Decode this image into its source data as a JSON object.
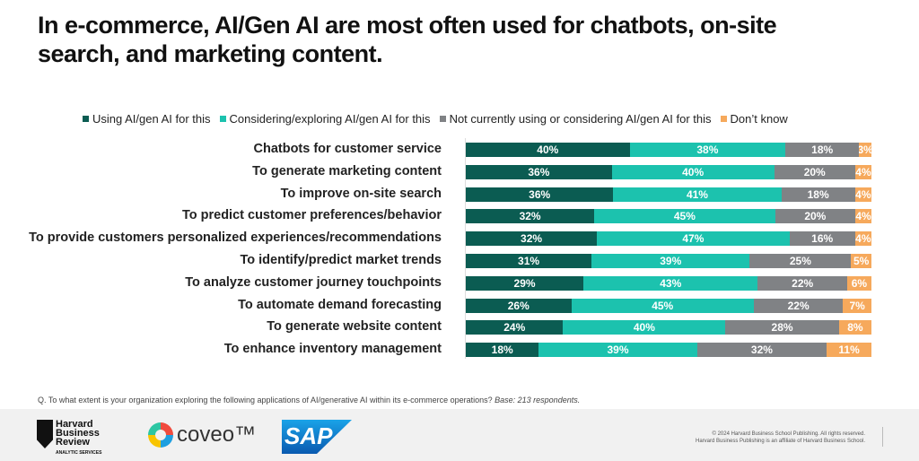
{
  "chart_data": {
    "type": "bar",
    "orientation": "horizontal-stacked-100",
    "title": "In e-commerce, AI/Gen AI are most often used for chatbots, on-site search, and marketing content.",
    "legend_position": "top",
    "categories": [
      "Chatbots for customer service",
      "To generate marketing content",
      "To improve on-site search",
      "To predict customer preferences/behavior",
      "To provide customers personalized experiences/recommendations",
      "To identify/predict market trends",
      "To analyze customer journey touchpoints",
      "To automate demand forecasting",
      "To generate website content",
      "To enhance inventory management"
    ],
    "series": [
      {
        "name": "Using AI/gen AI for this",
        "color": "#0b5c52",
        "values": [
          40,
          36,
          36,
          32,
          32,
          31,
          29,
          26,
          24,
          18
        ]
      },
      {
        "name": "Considering/exploring AI/gen AI for this",
        "color": "#1cc2ae",
        "values": [
          38,
          40,
          41,
          45,
          47,
          39,
          43,
          45,
          40,
          39
        ]
      },
      {
        "name": "Not currently using or considering AI/gen AI for this",
        "color": "#808285",
        "values": [
          18,
          20,
          18,
          20,
          16,
          25,
          22,
          22,
          28,
          32
        ]
      },
      {
        "name": "Don’t know",
        "color": "#f6a95c",
        "values": [
          3,
          4,
          4,
          4,
          4,
          5,
          6,
          7,
          8,
          11
        ]
      }
    ],
    "value_suffix": "%",
    "grid": false
  },
  "question": "Q. To what extent is your organization exploring the following applications of AI/generative AI within its e-commerce operations?",
  "base": "Base: 213 respondents.",
  "footer": {
    "hbr_logo": [
      "Harvard",
      "Business",
      "Review",
      "ANALYTIC SERVICES"
    ],
    "coveo_logo": "coveo™",
    "sap_logo": "SAP",
    "copyright": "© 2024 Harvard Business School Publishing. All rights reserved.",
    "affiliate": "Harvard Business Publishing is an affiliate of Harvard Business School."
  }
}
